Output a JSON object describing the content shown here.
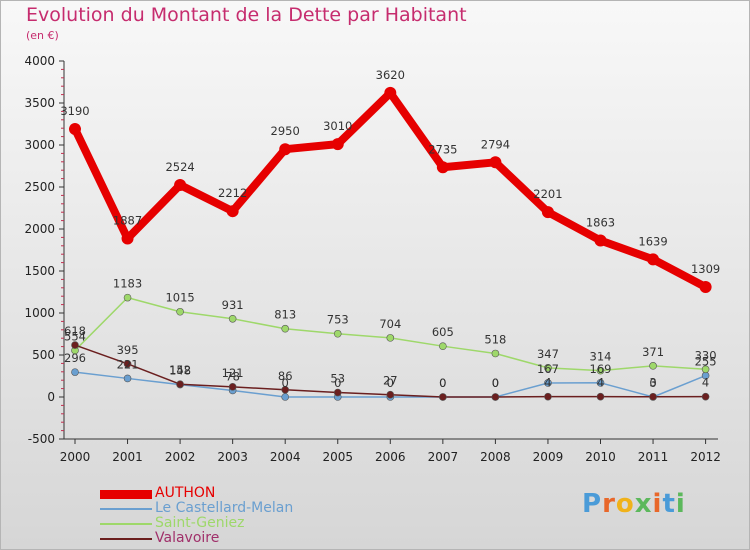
{
  "title": "Evolution du Montant de la Dette par Habitant",
  "subtitle": "(en €)",
  "brand": {
    "text": "Proxiti",
    "colors": [
      "#4a9bd8",
      "#e8672a",
      "#f0b21a",
      "#5cb85c",
      "#e8672a",
      "#4a9bd8",
      "#5cb85c"
    ]
  },
  "chart_data": {
    "type": "line",
    "title": "Evolution du Montant de la Dette par Habitant",
    "subtitle": "(en €)",
    "xlabel": "",
    "ylabel": "",
    "categories": [
      "2000",
      "2001",
      "2002",
      "2003",
      "2004",
      "2005",
      "2006",
      "2007",
      "2008",
      "2009",
      "2010",
      "2011",
      "2012"
    ],
    "ylim": [
      -500,
      4000
    ],
    "yticks": [
      -500,
      0,
      500,
      1000,
      1500,
      2000,
      2500,
      3000,
      3500,
      4000
    ],
    "grid": false,
    "legend_position": "bottom-left",
    "series": [
      {
        "name": "AUTHON",
        "color": "#e60000",
        "values": [
          3190,
          1887,
          2524,
          2212,
          2950,
          3010,
          3620,
          2735,
          2794,
          2201,
          1863,
          1639,
          1309
        ]
      },
      {
        "name": "Le Castellard-Melan",
        "color": "#6a9fd0",
        "values": [
          296,
          221,
          148,
          78,
          0,
          0,
          0,
          0,
          0,
          167,
          169,
          0,
          255
        ]
      },
      {
        "name": "Saint-Geniez",
        "color": "#9ed86a",
        "values": [
          554,
          1183,
          1015,
          931,
          813,
          753,
          704,
          605,
          518,
          347,
          314,
          371,
          330
        ]
      },
      {
        "name": "Valavoire",
        "color": "#6b1f1f",
        "values": [
          618,
          395,
          152,
          121,
          86,
          53,
          27,
          0,
          0,
          4,
          4,
          3,
          4
        ]
      }
    ]
  }
}
